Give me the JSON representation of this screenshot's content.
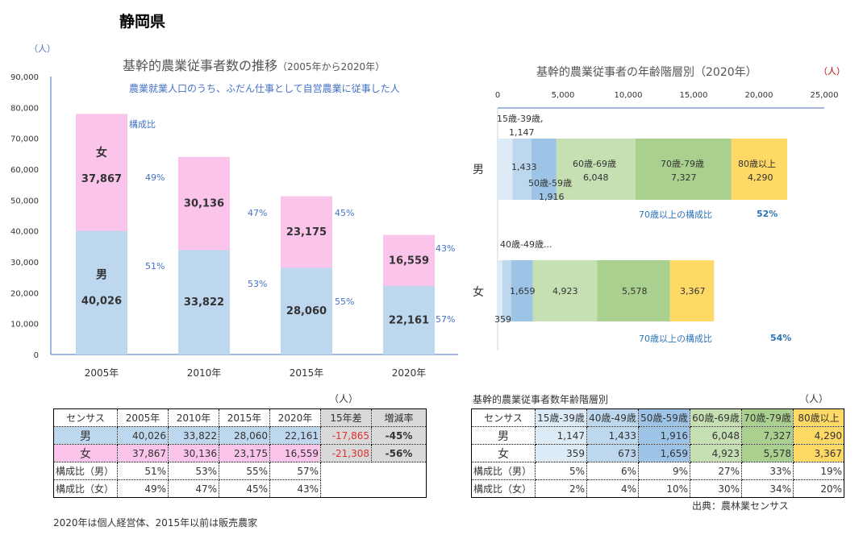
{
  "page_title": "静岡県",
  "unit": "（人）",
  "chart_data": [
    {
      "type": "bar",
      "stacked": true,
      "title": "基幹的農業従事者数の推移",
      "title_suffix": "（2005年から2020年）",
      "subtitle": "農業就業人口のうち、ふだん仕事として自営農業に従事した人",
      "ylabel": "（人）",
      "ylim": [
        0,
        90000
      ],
      "yticks": [
        "0",
        "10,000",
        "20,000",
        "30,000",
        "40,000",
        "50,000",
        "60,000",
        "70,000",
        "80,000",
        "90,000"
      ],
      "categories": [
        "2005年",
        "2010年",
        "2015年",
        "2020年"
      ],
      "series": [
        {
          "name": "男",
          "values": [
            40026,
            33822,
            28060,
            22161
          ],
          "labels": [
            "40,026",
            "33,822",
            "28,060",
            "22,161"
          ],
          "share": [
            "51%",
            "53%",
            "55%",
            "57%"
          ],
          "color": "#bdd7ee"
        },
        {
          "name": "女",
          "values": [
            37867,
            30136,
            23175,
            16559
          ],
          "labels": [
            "37,867",
            "30,136",
            "23,175",
            "16,559"
          ],
          "share": [
            "49%",
            "47%",
            "45%",
            "43%"
          ],
          "color": "#fbc4ea"
        }
      ],
      "annotation": "構成比"
    },
    {
      "type": "bar",
      "orientation": "horizontal",
      "stacked": true,
      "title": "基幹的農業従事者の年齢階層別（2020年）",
      "unit": "（人）",
      "xlim": [
        0,
        25000
      ],
      "xticks": [
        "0",
        "5,000",
        "10,000",
        "15,000",
        "20,000",
        "25,000"
      ],
      "categories": [
        "男",
        "女"
      ],
      "series": [
        {
          "name": "15歳-39歳",
          "values": [
            1147,
            359
          ],
          "color": "#ddebf7"
        },
        {
          "name": "40歳-49歳",
          "values": [
            1433,
            673
          ],
          "color": "#bdd7ee"
        },
        {
          "name": "50歳-59歳",
          "values": [
            1916,
            1659
          ],
          "color": "#9dc3e6"
        },
        {
          "name": "60歳-69歳",
          "values": [
            6048,
            4923
          ],
          "color": "#c6e0b4"
        },
        {
          "name": "70歳-79歳",
          "values": [
            7327,
            5578
          ],
          "color": "#a9d08e"
        },
        {
          "name": "80歳以上",
          "values": [
            4290,
            3367
          ],
          "color": "#ffd966"
        }
      ],
      "male_labels": {
        "l1a": "15歳-39歳,",
        "l1b": "1,147",
        "l2": "1,433",
        "l3a": "50歳-59歳",
        "l3b": "1,916",
        "l4a": "60歳-69歳",
        "l4b": "6,048",
        "l5a": "70歳-79歳",
        "l5b": "7,327",
        "l6a": "80歳以上",
        "l6b": "4,290"
      },
      "female_labels": {
        "l1": "359",
        "l2": "40歳-49歳...",
        "l3": "1,659",
        "l4": "4,923",
        "l5": "5,578",
        "l6": "3,367"
      },
      "ratio_label": "70歳以上の構成比",
      "ratio_male": "52%",
      "ratio_female": "54%"
    }
  ],
  "table1": {
    "unit": "（人）",
    "headers": [
      "センサス",
      "2005年",
      "2010年",
      "2015年",
      "2020年",
      "15年差",
      "増減率"
    ],
    "rows": [
      [
        "男",
        "40,026",
        "33,822",
        "28,060",
        "22,161",
        "-17,865",
        "-45%"
      ],
      [
        "女",
        "37,867",
        "30,136",
        "23,175",
        "16,559",
        "-21,308",
        "-56%"
      ],
      [
        "構成比（男）",
        "51%",
        "53%",
        "55%",
        "57%"
      ],
      [
        "構成比（女）",
        "49%",
        "47%",
        "45%",
        "43%"
      ]
    ]
  },
  "table2": {
    "title": "基幹的農業従事者数年齢階層別",
    "unit": "（人）",
    "headers": [
      "センサス",
      "15歳-39歳",
      "40歳-49歳",
      "50歳-59歳",
      "60歳-69歳",
      "70歳-79歳",
      "80歳以上"
    ],
    "rows": [
      [
        "男",
        "1,147",
        "1,433",
        "1,916",
        "6,048",
        "7,327",
        "4,290"
      ],
      [
        "女",
        "359",
        "673",
        "1,659",
        "4,923",
        "5,578",
        "3,367"
      ],
      [
        "構成比（男）",
        "5%",
        "6%",
        "9%",
        "27%",
        "33%",
        "19%"
      ],
      [
        "構成比（女）",
        "2%",
        "4%",
        "10%",
        "30%",
        "34%",
        "20%"
      ]
    ]
  },
  "note": "2020年は個人経営体、2015年以前は販売農家",
  "source": "出典：農林業センサス"
}
